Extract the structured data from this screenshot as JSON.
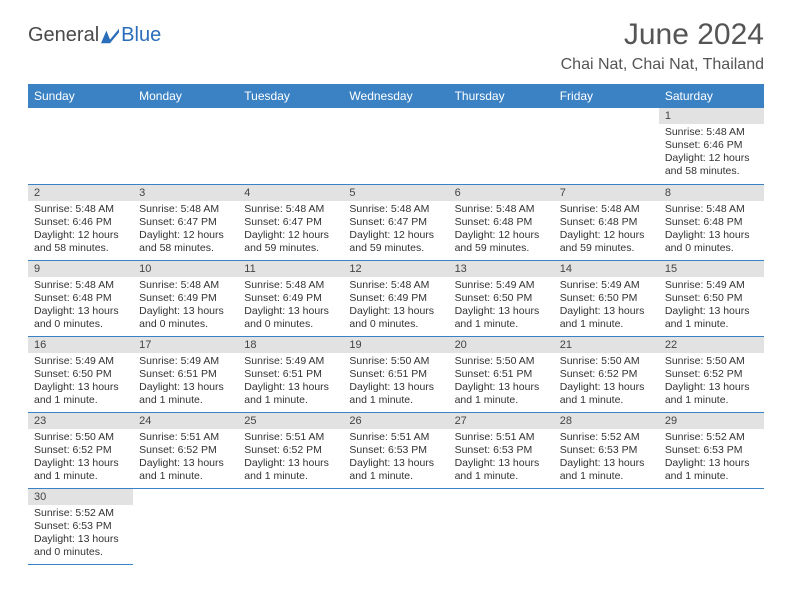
{
  "logo": {
    "text1": "General",
    "text2": "Blue"
  },
  "title": "June 2024",
  "location": "Chai Nat, Chai Nat, Thailand",
  "header_bg": "#3b82c4",
  "daynum_bg": "#e2e2e2",
  "border_color": "#3b82c4",
  "weekdays": [
    "Sunday",
    "Monday",
    "Tuesday",
    "Wednesday",
    "Thursday",
    "Friday",
    "Saturday"
  ],
  "weeks": [
    [
      null,
      null,
      null,
      null,
      null,
      null,
      {
        "d": "1",
        "sr": "5:48 AM",
        "ss": "6:46 PM",
        "dl": "12 hours and 58 minutes."
      }
    ],
    [
      {
        "d": "2",
        "sr": "5:48 AM",
        "ss": "6:46 PM",
        "dl": "12 hours and 58 minutes."
      },
      {
        "d": "3",
        "sr": "5:48 AM",
        "ss": "6:47 PM",
        "dl": "12 hours and 58 minutes."
      },
      {
        "d": "4",
        "sr": "5:48 AM",
        "ss": "6:47 PM",
        "dl": "12 hours and 59 minutes."
      },
      {
        "d": "5",
        "sr": "5:48 AM",
        "ss": "6:47 PM",
        "dl": "12 hours and 59 minutes."
      },
      {
        "d": "6",
        "sr": "5:48 AM",
        "ss": "6:48 PM",
        "dl": "12 hours and 59 minutes."
      },
      {
        "d": "7",
        "sr": "5:48 AM",
        "ss": "6:48 PM",
        "dl": "12 hours and 59 minutes."
      },
      {
        "d": "8",
        "sr": "5:48 AM",
        "ss": "6:48 PM",
        "dl": "13 hours and 0 minutes."
      }
    ],
    [
      {
        "d": "9",
        "sr": "5:48 AM",
        "ss": "6:48 PM",
        "dl": "13 hours and 0 minutes."
      },
      {
        "d": "10",
        "sr": "5:48 AM",
        "ss": "6:49 PM",
        "dl": "13 hours and 0 minutes."
      },
      {
        "d": "11",
        "sr": "5:48 AM",
        "ss": "6:49 PM",
        "dl": "13 hours and 0 minutes."
      },
      {
        "d": "12",
        "sr": "5:48 AM",
        "ss": "6:49 PM",
        "dl": "13 hours and 0 minutes."
      },
      {
        "d": "13",
        "sr": "5:49 AM",
        "ss": "6:50 PM",
        "dl": "13 hours and 1 minute."
      },
      {
        "d": "14",
        "sr": "5:49 AM",
        "ss": "6:50 PM",
        "dl": "13 hours and 1 minute."
      },
      {
        "d": "15",
        "sr": "5:49 AM",
        "ss": "6:50 PM",
        "dl": "13 hours and 1 minute."
      }
    ],
    [
      {
        "d": "16",
        "sr": "5:49 AM",
        "ss": "6:50 PM",
        "dl": "13 hours and 1 minute."
      },
      {
        "d": "17",
        "sr": "5:49 AM",
        "ss": "6:51 PM",
        "dl": "13 hours and 1 minute."
      },
      {
        "d": "18",
        "sr": "5:49 AM",
        "ss": "6:51 PM",
        "dl": "13 hours and 1 minute."
      },
      {
        "d": "19",
        "sr": "5:50 AM",
        "ss": "6:51 PM",
        "dl": "13 hours and 1 minute."
      },
      {
        "d": "20",
        "sr": "5:50 AM",
        "ss": "6:51 PM",
        "dl": "13 hours and 1 minute."
      },
      {
        "d": "21",
        "sr": "5:50 AM",
        "ss": "6:52 PM",
        "dl": "13 hours and 1 minute."
      },
      {
        "d": "22",
        "sr": "5:50 AM",
        "ss": "6:52 PM",
        "dl": "13 hours and 1 minute."
      }
    ],
    [
      {
        "d": "23",
        "sr": "5:50 AM",
        "ss": "6:52 PM",
        "dl": "13 hours and 1 minute."
      },
      {
        "d": "24",
        "sr": "5:51 AM",
        "ss": "6:52 PM",
        "dl": "13 hours and 1 minute."
      },
      {
        "d": "25",
        "sr": "5:51 AM",
        "ss": "6:52 PM",
        "dl": "13 hours and 1 minute."
      },
      {
        "d": "26",
        "sr": "5:51 AM",
        "ss": "6:53 PM",
        "dl": "13 hours and 1 minute."
      },
      {
        "d": "27",
        "sr": "5:51 AM",
        "ss": "6:53 PM",
        "dl": "13 hours and 1 minute."
      },
      {
        "d": "28",
        "sr": "5:52 AM",
        "ss": "6:53 PM",
        "dl": "13 hours and 1 minute."
      },
      {
        "d": "29",
        "sr": "5:52 AM",
        "ss": "6:53 PM",
        "dl": "13 hours and 1 minute."
      }
    ],
    [
      {
        "d": "30",
        "sr": "5:52 AM",
        "ss": "6:53 PM",
        "dl": "13 hours and 0 minutes."
      },
      null,
      null,
      null,
      null,
      null,
      null
    ]
  ],
  "labels": {
    "sunrise": "Sunrise:",
    "sunset": "Sunset:",
    "daylight": "Daylight:"
  }
}
